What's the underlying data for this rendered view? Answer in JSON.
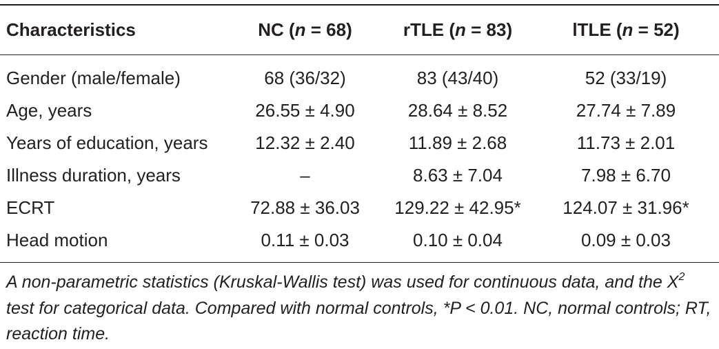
{
  "table": {
    "headers": [
      {
        "pre": "Characteristics",
        "n": "",
        "post": ""
      },
      {
        "pre": "NC (",
        "n": "n",
        "post": " = 68)"
      },
      {
        "pre": "rTLE (",
        "n": "n",
        "post": " = 83)"
      },
      {
        "pre": "lTLE (",
        "n": "n",
        "post": " = 52)"
      }
    ],
    "rows": [
      [
        "Gender (male/female)",
        "68 (36/32)",
        "83 (43/40)",
        "52 (33/19)"
      ],
      [
        "Age, years",
        "26.55 ± 4.90",
        "28.64 ± 8.52",
        "27.74 ± 7.89"
      ],
      [
        "Years of education, years",
        "12.32 ± 2.40",
        "11.89 ± 2.68",
        "11.73 ± 2.01"
      ],
      [
        "Illness duration, years",
        "–",
        "8.63 ± 7.04",
        "7.98 ± 6.70"
      ],
      [
        "ECRT",
        "72.88 ± 36.03",
        "129.22 ± 42.95*",
        "124.07 ± 31.96*"
      ],
      [
        "Head motion",
        "0.11 ± 0.03",
        "0.10 ± 0.04",
        "0.09 ± 0.03"
      ]
    ]
  },
  "footnote": {
    "part1": "A non-parametric statistics (Kruskal-Wallis test) was used for continuous data, and the X",
    "sup": "2",
    "part2": " test for categorical data. Compared with normal controls, *P < 0.01. NC, normal controls; RT, reaction time."
  }
}
